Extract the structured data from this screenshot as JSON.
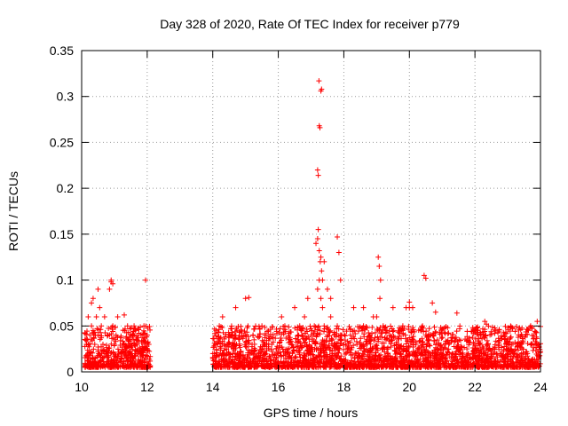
{
  "chart_data": {
    "type": "scatter",
    "title": "Day 328 of 2020, Rate Of TEC Index for receiver p779",
    "xlabel": "GPS time / hours",
    "ylabel": "ROTI / TECUs",
    "xlim": [
      10,
      24
    ],
    "ylim": [
      0,
      0.35
    ],
    "xticks": [
      10,
      12,
      14,
      16,
      18,
      20,
      22,
      24
    ],
    "xtick_labels": [
      "10",
      "12",
      "14",
      "16",
      "18",
      "20",
      "22",
      "24"
    ],
    "yticks": [
      0,
      0.05,
      0.1,
      0.15,
      0.2,
      0.25,
      0.3,
      0.35
    ],
    "ytick_labels": [
      "0",
      "0.05",
      "0.1",
      "0.15",
      "0.2",
      "0.25",
      "0.3",
      "0.35"
    ],
    "grid": true,
    "marker": "+",
    "color": "#ff0000",
    "series": [
      {
        "name": "ROTI",
        "x": [
          10.15,
          10.2,
          10.25,
          10.3,
          10.35,
          10.4,
          10.45,
          10.5,
          10.55,
          10.6,
          10.65,
          10.7,
          10.75,
          10.8,
          10.85,
          10.9,
          10.95,
          11.0,
          11.05,
          11.1,
          11.2,
          11.3,
          11.4,
          11.5,
          11.6,
          11.7,
          11.8,
          11.9,
          12.0,
          12.05,
          10.3,
          10.5,
          10.9,
          10.95,
          11.3,
          11.6,
          11.95,
          10.2,
          10.4,
          10.6,
          10.8,
          11.0,
          11.2,
          11.4,
          11.8,
          14.05,
          14.2,
          14.35,
          14.5,
          14.6,
          14.8,
          15.0,
          15.2,
          15.4,
          15.6,
          15.8,
          16.0,
          16.2,
          16.4,
          16.6,
          16.8,
          17.0,
          17.1,
          17.2,
          17.25,
          17.3,
          17.35,
          17.4,
          17.5,
          17.6,
          17.7,
          17.8,
          17.9,
          18.0,
          18.2,
          18.4,
          18.6,
          18.8,
          19.0,
          19.1,
          19.2,
          19.4,
          19.6,
          19.8,
          20.0,
          20.2,
          20.4,
          20.5,
          20.6,
          20.8,
          21.0,
          21.2,
          21.4,
          21.6,
          21.8,
          22.0,
          22.2,
          22.4,
          22.6,
          22.8,
          23.0,
          23.2,
          23.4,
          23.6,
          23.8,
          23.95,
          14.3,
          14.7,
          15.0,
          15.1,
          15.5,
          16.1,
          16.5,
          16.9,
          17.15,
          17.22,
          17.25,
          17.28,
          17.3,
          17.32,
          17.35,
          17.4,
          17.5,
          17.6,
          17.8,
          17.85,
          17.9,
          18.3,
          18.6,
          18.9,
          19.05,
          19.08,
          19.12,
          19.5,
          19.9,
          20.0,
          20.1,
          20.45,
          20.5,
          20.7,
          20.8,
          21.45,
          22.3,
          22.35,
          23.1,
          23.7,
          23.9,
          17.2,
          17.22,
          17.25,
          17.27,
          17.3,
          17.32,
          17.24,
          17.2
        ],
        "y": [
          0.03,
          0.06,
          0.04,
          0.05,
          0.08,
          0.03,
          0.06,
          0.04,
          0.07,
          0.05,
          0.03,
          0.06,
          0.02,
          0.04,
          0.09,
          0.1,
          0.05,
          0.03,
          0.04,
          0.06,
          0.02,
          0.03,
          0.05,
          0.02,
          0.04,
          0.03,
          0.02,
          0.05,
          0.04,
          0.03,
          0.075,
          0.09,
          0.098,
          0.096,
          0.062,
          0.05,
          0.1,
          0.015,
          0.01,
          0.012,
          0.018,
          0.01,
          0.015,
          0.012,
          0.01,
          0.02,
          0.05,
          0.03,
          0.04,
          0.03,
          0.02,
          0.04,
          0.03,
          0.02,
          0.04,
          0.03,
          0.02,
          0.05,
          0.03,
          0.04,
          0.06,
          0.04,
          0.05,
          0.09,
          0.1,
          0.08,
          0.07,
          0.05,
          0.04,
          0.06,
          0.03,
          0.05,
          0.04,
          0.03,
          0.04,
          0.03,
          0.05,
          0.04,
          0.06,
          0.08,
          0.05,
          0.04,
          0.03,
          0.05,
          0.07,
          0.03,
          0.05,
          0.04,
          0.03,
          0.02,
          0.02,
          0.03,
          0.02,
          0.015,
          0.02,
          0.025,
          0.02,
          0.03,
          0.025,
          0.02,
          0.03,
          0.02,
          0.03,
          0.02,
          0.04,
          0.03,
          0.06,
          0.07,
          0.08,
          0.081,
          0.05,
          0.06,
          0.07,
          0.08,
          0.14,
          0.155,
          0.132,
          0.12,
          0.125,
          0.11,
          0.1,
          0.12,
          0.09,
          0.08,
          0.147,
          0.13,
          0.1,
          0.07,
          0.07,
          0.06,
          0.125,
          0.115,
          0.1,
          0.07,
          0.07,
          0.076,
          0.07,
          0.105,
          0.102,
          0.075,
          0.065,
          0.064,
          0.055,
          0.052,
          0.038,
          0.05,
          0.055,
          0.22,
          0.214,
          0.268,
          0.266,
          0.306,
          0.308,
          0.317,
          0.145
        ]
      }
    ]
  }
}
